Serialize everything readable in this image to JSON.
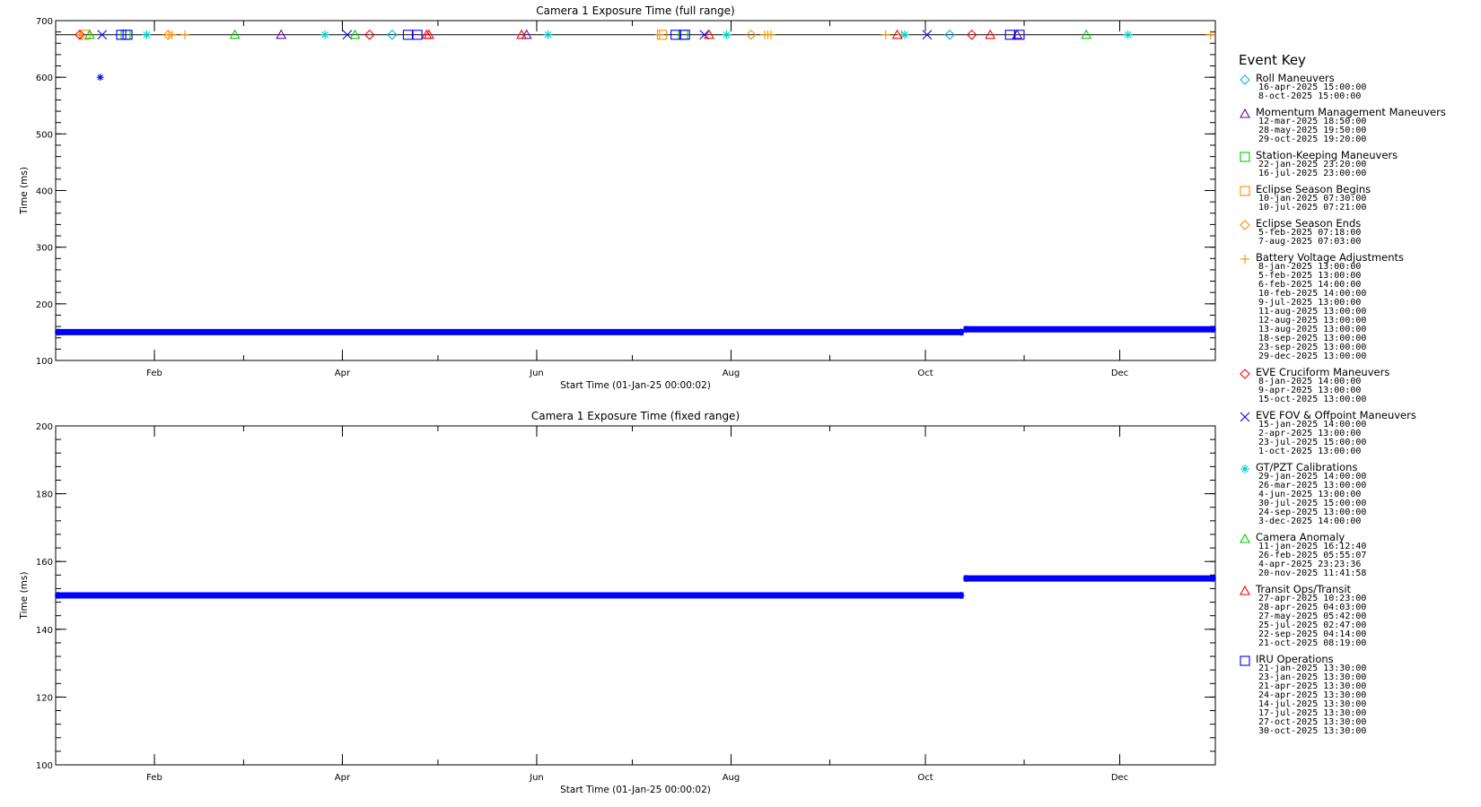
{
  "chart_data": [
    {
      "type": "scatter",
      "title": "Camera 1 Exposure Time (full range)",
      "xlabel": "Start Time (01-Jan-25 00:00:02)",
      "ylabel": "Time (ms)",
      "xlim": [
        "2025-01-01",
        "2025-12-31"
      ],
      "ylim": [
        100,
        700
      ],
      "y_ticks": [
        100,
        200,
        300,
        400,
        500,
        600,
        700
      ],
      "x_ticks": [
        "Feb",
        "Apr",
        "Jun",
        "Aug",
        "Oct",
        "Dec"
      ],
      "series": [
        {
          "color": "#0000ff",
          "marker": "asterisk",
          "segments": [
            {
              "x": [
                "2025-01-01",
                "2025-10-13"
              ],
              "y": 150
            },
            {
              "x": [
                "2025-10-13",
                "2025-12-31"
              ],
              "y": 155
            }
          ],
          "outliers": [
            {
              "x": "2025-01-15",
              "y": 600
            }
          ]
        }
      ],
      "event_marker_y": 675
    },
    {
      "type": "scatter",
      "title": "Camera 1 Exposure Time (fixed range)",
      "xlabel": "Start Time (01-Jan-25 00:00:02)",
      "ylabel": "Time (ms)",
      "xlim": [
        "2025-01-01",
        "2025-12-31"
      ],
      "ylim": [
        100,
        200
      ],
      "y_ticks": [
        100,
        120,
        140,
        160,
        180,
        200
      ],
      "x_ticks": [
        "Feb",
        "Apr",
        "Jun",
        "Aug",
        "Oct",
        "Dec"
      ],
      "series": [
        {
          "color": "#0000ff",
          "marker": "asterisk",
          "segments": [
            {
              "x": [
                "2025-01-01",
                "2025-10-13"
              ],
              "y": 150
            },
            {
              "x": [
                "2025-10-13",
                "2025-12-31"
              ],
              "y": 155
            }
          ]
        }
      ]
    }
  ],
  "legend": {
    "title": "Event Key",
    "entries": [
      {
        "label": "Roll Maneuvers",
        "symbol": "diamond",
        "color": "#00b4e6",
        "dates": [
          "16-apr-2025 15:00:00",
          "8-oct-2025 15:00:00"
        ]
      },
      {
        "label": "Momentum Management Maneuvers",
        "symbol": "triangle",
        "color": "#6a00b0",
        "dates": [
          "12-mar-2025 18:50:00",
          "28-may-2025 19:50:00",
          "29-oct-2025 19:20:00"
        ]
      },
      {
        "label": "Station-Keeping Maneuvers",
        "symbol": "square",
        "color": "#00cc00",
        "dates": [
          "22-jan-2025 23:20:00",
          "16-jul-2025 23:00:00"
        ]
      },
      {
        "label": "Eclipse Season Begins",
        "symbol": "square",
        "color": "#ff8c00",
        "dates": [
          "10-jan-2025 07:30:00",
          "10-jul-2025 07:21:00"
        ]
      },
      {
        "label": "Eclipse Season Ends",
        "symbol": "diamond",
        "color": "#ff8c00",
        "dates": [
          "5-feb-2025 07:18:00",
          "7-aug-2025 07:03:00"
        ]
      },
      {
        "label": "Battery Voltage Adjustments",
        "symbol": "plus",
        "color": "#ff8c00",
        "dates": [
          "8-jan-2025 13:00:00",
          "5-feb-2025 13:00:00",
          "6-feb-2025 14:00:00",
          "10-feb-2025 14:00:00",
          "9-jul-2025 13:00:00",
          "11-aug-2025 13:00:00",
          "12-aug-2025 13:00:00",
          "13-aug-2025 13:00:00",
          "18-sep-2025 13:00:00",
          "23-sep-2025 13:00:00",
          "29-dec-2025 13:00:00"
        ]
      },
      {
        "label": "EVE Cruciform Maneuvers",
        "symbol": "diamond",
        "color": "#ff0000",
        "dates": [
          "8-jan-2025 14:00:00",
          "9-apr-2025 13:00:00",
          "15-oct-2025 13:00:00"
        ]
      },
      {
        "label": "EVE FOV & Offpoint Maneuvers",
        "symbol": "x",
        "color": "#0000ff",
        "dates": [
          "15-jan-2025 14:00:00",
          "2-apr-2025 13:00:00",
          "23-jul-2025 15:00:00",
          "1-oct-2025 13:00:00"
        ]
      },
      {
        "label": "GT/PZT Calibrations",
        "symbol": "asterisk",
        "color": "#00cccc",
        "dates": [
          "29-jan-2025 14:00:00",
          "26-mar-2025 13:00:00",
          "4-jun-2025 13:00:00",
          "30-jul-2025 15:00:00",
          "24-sep-2025 13:00:00",
          "3-dec-2025 14:00:00"
        ]
      },
      {
        "label": "Camera Anomaly",
        "symbol": "triangle",
        "color": "#00cc00",
        "dates": [
          "11-jan-2025 16:12:40",
          "26-feb-2025 05:55:07",
          "4-apr-2025 23:23:36",
          "20-nov-2025 11:41:58"
        ]
      },
      {
        "label": "Transit Ops/Transit",
        "symbol": "triangle",
        "color": "#ff0000",
        "dates": [
          "27-apr-2025 10:23:00",
          "28-apr-2025 04:03:00",
          "27-may-2025 05:42:00",
          "25-jul-2025 02:47:00",
          "22-sep-2025 04:14:00",
          "21-oct-2025 08:19:00"
        ]
      },
      {
        "label": "IRU Operations",
        "symbol": "square",
        "color": "#0000ff",
        "dates": [
          "21-jan-2025 13:30:00",
          "23-jan-2025 13:30:00",
          "21-apr-2025 13:30:00",
          "24-apr-2025 13:30:00",
          "14-jul-2025 13:30:00",
          "17-jul-2025 13:30:00",
          "27-oct-2025 13:30:00",
          "30-oct-2025 13:30:00"
        ]
      }
    ]
  }
}
